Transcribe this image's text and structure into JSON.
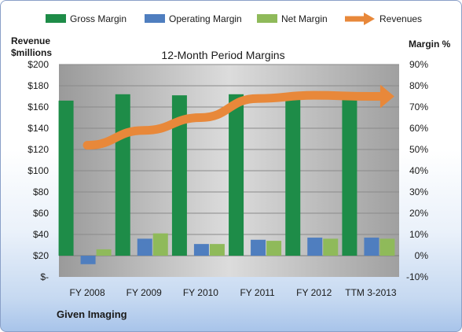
{
  "chart_data": {
    "type": "bar",
    "title": "12-Month Period Margins",
    "company": "Given Imaging",
    "categories": [
      "FY 2008",
      "FY 2009",
      "FY 2010",
      "FY 2011",
      "FY 2012",
      "TTM 3-2013"
    ],
    "left_axis": {
      "label_line1": "Revenue",
      "label_line2": "$millions",
      "range": [
        0,
        200
      ],
      "ticks": [
        "$-",
        "$20",
        "$40",
        "$60",
        "$80",
        "$100",
        "$120",
        "$140",
        "$160",
        "$180",
        "$200"
      ]
    },
    "right_axis": {
      "label": "Margin  %",
      "range": [
        -10,
        90
      ],
      "ticks": [
        "-10%",
        "0%",
        "10%",
        "20%",
        "30%",
        "40%",
        "50%",
        "60%",
        "70%",
        "80%",
        "90%"
      ]
    },
    "series": [
      {
        "name": "Gross Margin",
        "color": "#1e8c48",
        "axis": "right",
        "values": [
          73,
          76,
          75.5,
          76,
          75.5,
          75.5
        ]
      },
      {
        "name": "Operating Margin",
        "color": "#4f7ebf",
        "axis": "right",
        "values": [
          -4,
          8,
          5.5,
          7.5,
          8.5,
          8.5
        ]
      },
      {
        "name": "Net Margin",
        "color": "#8fba5a",
        "axis": "right",
        "values": [
          3,
          10.5,
          5.5,
          7,
          8,
          8
        ]
      },
      {
        "name": "Revenues",
        "color": "#e8883a",
        "axis": "left",
        "type": "arrow-line",
        "values": [
          124,
          138,
          150,
          168,
          171,
          170
        ]
      }
    ],
    "grid": true,
    "legend": "top"
  }
}
